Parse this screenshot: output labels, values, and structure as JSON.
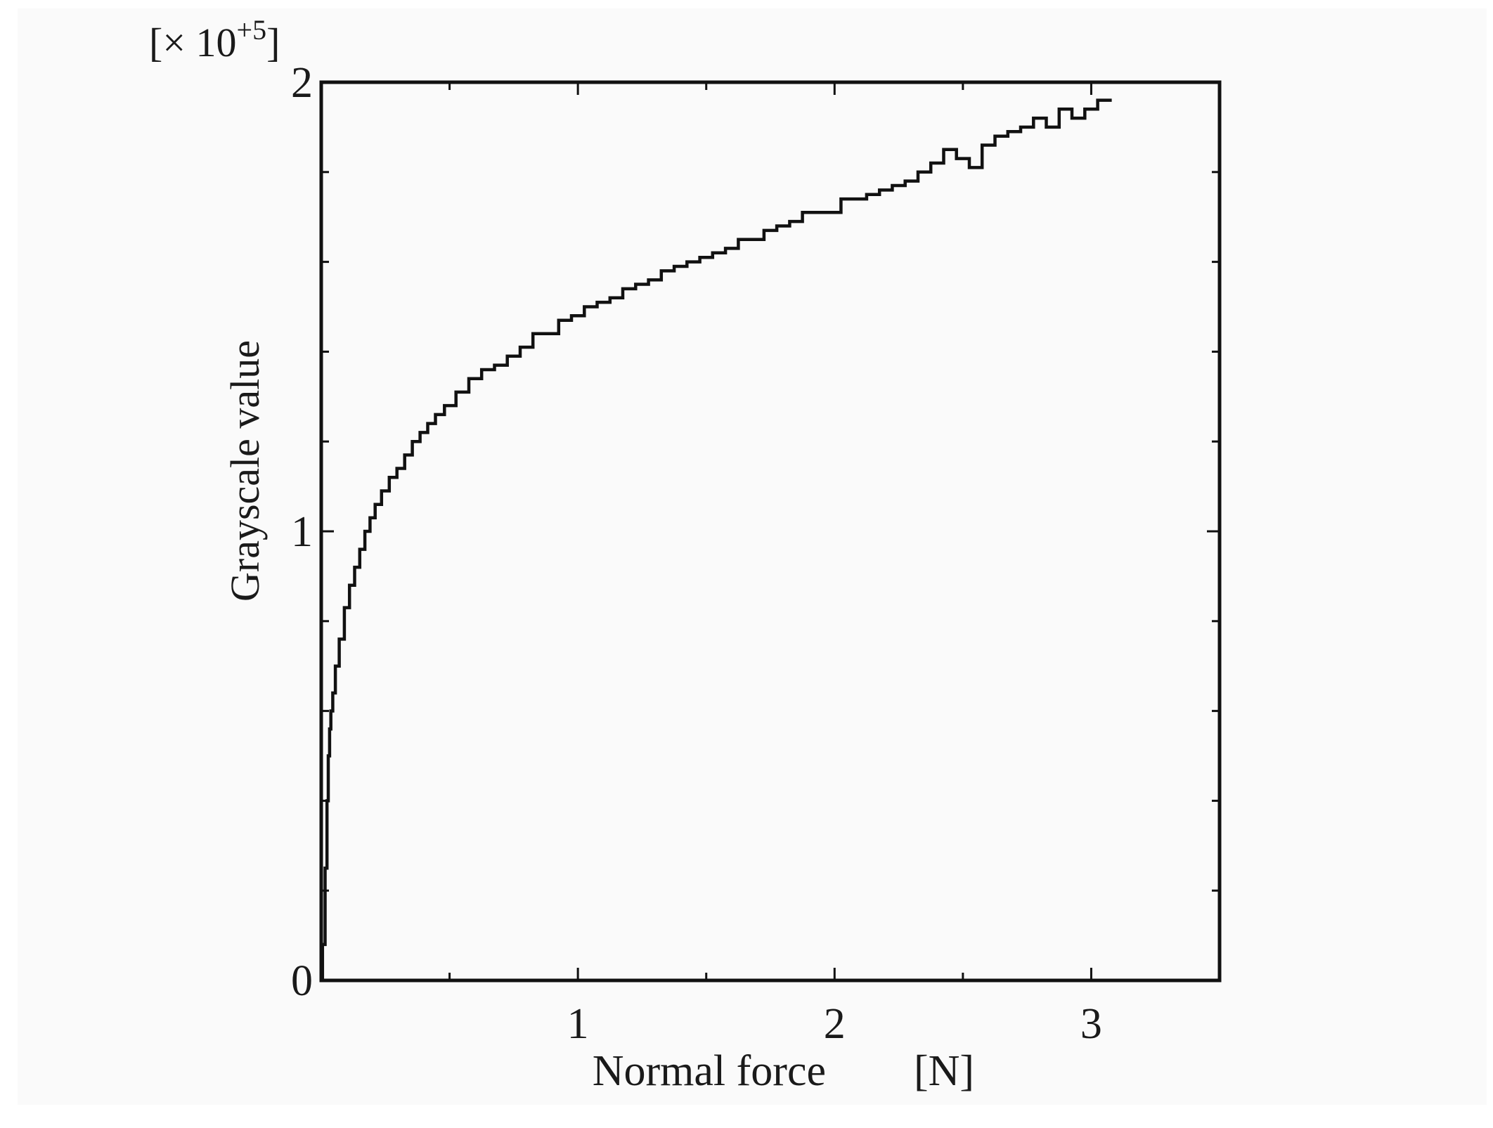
{
  "chart_data": {
    "type": "line",
    "title": "",
    "xlabel": "Normal force",
    "xunit": "[N]",
    "ylabel": "Grayscale value",
    "y_multiplier": {
      "prefix": "[× 10",
      "exponent": "+5",
      "suffix": "]"
    },
    "xlim": [
      0,
      3.5
    ],
    "ylim": [
      0,
      2
    ],
    "x_ticks": [
      {
        "value": 1,
        "label": "1"
      },
      {
        "value": 2,
        "label": "2"
      },
      {
        "value": 3,
        "label": "3"
      }
    ],
    "x_minor_ticks": [
      0.5,
      1.5,
      2.5
    ],
    "y_ticks": [
      {
        "value": 0,
        "label": "0"
      },
      {
        "value": 1,
        "label": "1"
      },
      {
        "value": 2,
        "label": "2"
      }
    ],
    "y_minor_ticks": [
      0.2,
      0.4,
      0.6,
      0.8,
      1.2,
      1.4,
      1.6,
      1.8
    ],
    "grid": false,
    "legend": "none",
    "line_color": "#111111",
    "series": [
      {
        "x": [
          0.0,
          0.01,
          0.02,
          0.025,
          0.03,
          0.035,
          0.04,
          0.05,
          0.06,
          0.08,
          0.1,
          0.12,
          0.14,
          0.16,
          0.18,
          0.2,
          0.22,
          0.25,
          0.28,
          0.31,
          0.34,
          0.37,
          0.4,
          0.43,
          0.46,
          0.5,
          0.55,
          0.6,
          0.65,
          0.7,
          0.75,
          0.8,
          0.85,
          0.9,
          0.95,
          1.0,
          1.05,
          1.1,
          1.15,
          1.2,
          1.25,
          1.3,
          1.35,
          1.4,
          1.45,
          1.5,
          1.55,
          1.6,
          1.65,
          1.7,
          1.75,
          1.8,
          1.85,
          1.9,
          1.95,
          2.0,
          2.05,
          2.1,
          2.15,
          2.2,
          2.25,
          2.3,
          2.35,
          2.4,
          2.45,
          2.5,
          2.55,
          2.6,
          2.65,
          2.7,
          2.75,
          2.8,
          2.85,
          2.9,
          2.95,
          3.0,
          3.05,
          3.08
        ],
        "y": [
          0.0,
          0.08,
          0.25,
          0.4,
          0.5,
          0.56,
          0.6,
          0.64,
          0.7,
          0.76,
          0.83,
          0.88,
          0.92,
          0.96,
          1.0,
          1.03,
          1.06,
          1.09,
          1.12,
          1.14,
          1.17,
          1.2,
          1.22,
          1.24,
          1.26,
          1.28,
          1.31,
          1.34,
          1.36,
          1.37,
          1.39,
          1.41,
          1.44,
          1.44,
          1.47,
          1.48,
          1.5,
          1.51,
          1.52,
          1.54,
          1.55,
          1.56,
          1.58,
          1.59,
          1.6,
          1.61,
          1.62,
          1.63,
          1.65,
          1.65,
          1.67,
          1.68,
          1.69,
          1.71,
          1.71,
          1.71,
          1.74,
          1.74,
          1.75,
          1.76,
          1.77,
          1.78,
          1.8,
          1.82,
          1.85,
          1.83,
          1.81,
          1.86,
          1.88,
          1.89,
          1.9,
          1.92,
          1.9,
          1.94,
          1.92,
          1.94,
          1.96,
          1.96
        ]
      }
    ]
  }
}
